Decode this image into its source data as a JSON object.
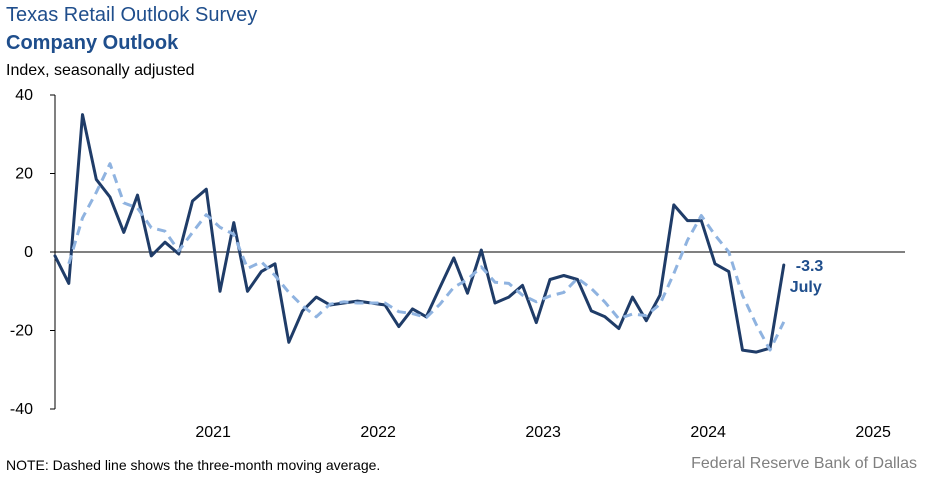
{
  "chart_data": {
    "type": "line",
    "title": "Texas Retail Outlook Survey",
    "subtitle": "Company Outlook",
    "ylabel": "Index, seasonally adjusted",
    "ylim": [
      -40,
      40
    ],
    "yticks": [
      40,
      20,
      0,
      -20,
      -40
    ],
    "year_labels": [
      "2021",
      "2022",
      "2023",
      "2024",
      "2025"
    ],
    "x_start": "2020-07",
    "x_end": "2025-07",
    "grid": false,
    "series": [
      {
        "values": [
          -1.0,
          -8.0,
          35.0,
          18.5,
          14.0,
          5.0,
          14.5,
          -1.0,
          2.5,
          -0.5,
          13.0,
          16.0,
          -10.0,
          7.5,
          -10.0,
          -5.0,
          -3.0,
          -23.0,
          -15.0,
          -11.5,
          -13.5,
          -13.0,
          -12.5,
          -13.0,
          -13.5,
          -19.0,
          -14.5,
          -16.5,
          -9.0,
          -1.5,
          -10.5,
          0.5,
          -13.0,
          -11.5,
          -8.5,
          -18.0,
          -7.0,
          -6.0,
          -7.0,
          -15.0,
          -16.5,
          -19.5,
          -11.5,
          -17.5,
          -11.0,
          12.0,
          8.0,
          8.0,
          -3.0,
          -5.0,
          -25.0,
          -25.5,
          -24.5,
          -3.3
        ],
        "color": "#1f3c68",
        "style": "solid"
      },
      {
        "values": [
          null,
          -3.0,
          8.7,
          15.2,
          22.5,
          12.5,
          11.2,
          6.2,
          5.3,
          0.3,
          5.0,
          9.5,
          6.3,
          4.5,
          -4.2,
          -2.5,
          -6.0,
          -10.3,
          -13.7,
          -16.5,
          -13.3,
          -12.7,
          -13.0,
          -13.0,
          -13.0,
          -15.2,
          -15.7,
          -16.7,
          -13.3,
          -9.0,
          -7.0,
          -3.8,
          -7.7,
          -8.0,
          -11.0,
          -12.7,
          -11.2,
          -10.3,
          -6.7,
          -9.3,
          -12.8,
          -17.0,
          -15.8,
          -16.2,
          -13.3,
          -5.5,
          3.0,
          9.3,
          4.3,
          0.0,
          -11.0,
          -18.5,
          -25.0,
          -17.8
        ],
        "color": "#8fb3e0",
        "style": "dashed"
      }
    ],
    "annotation": {
      "value": "-3.3",
      "label": "July"
    }
  },
  "note": "NOTE: Dashed line shows the three-month moving average.",
  "source": "Federal Reserve Bank of Dallas"
}
